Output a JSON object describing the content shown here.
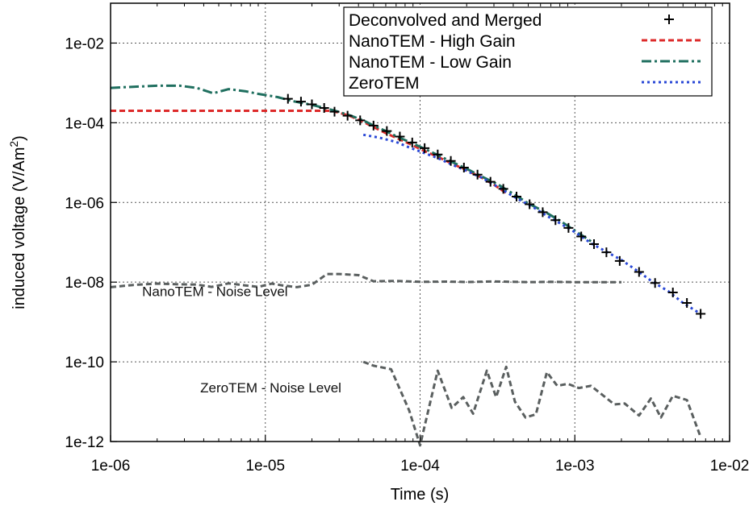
{
  "chart_data": {
    "type": "line",
    "title": "",
    "xlabel": "Time (s)",
    "ylabel": "induced voltage (V/Am",
    "ylabel_sup": "2",
    "ylabel_end": ")",
    "xscale": "log",
    "yscale": "log",
    "xlim": [
      1e-06,
      0.01
    ],
    "ylim": [
      1e-12,
      0.1
    ],
    "grid": true,
    "legend_position": "top-right",
    "x_ticks": [
      {
        "value": 1e-06,
        "label": "1e-06"
      },
      {
        "value": 1e-05,
        "label": "1e-05"
      },
      {
        "value": 0.0001,
        "label": "1e-04"
      },
      {
        "value": 0.001,
        "label": "1e-03"
      },
      {
        "value": 0.01,
        "label": "1e-02"
      }
    ],
    "y_ticks": [
      {
        "value": 1e-12,
        "label": "1e-12"
      },
      {
        "value": 1e-10,
        "label": "1e-10"
      },
      {
        "value": 1e-08,
        "label": "1e-08"
      },
      {
        "value": 1e-06,
        "label": "1e-06"
      },
      {
        "value": 0.0001,
        "label": "1e-04"
      },
      {
        "value": 0.01,
        "label": "1e-02"
      }
    ],
    "series": [
      {
        "name": "NanoTEM - Noise Level",
        "color": "#5a5f5f",
        "style": "dashed",
        "in_legend": false,
        "x": [
          1e-06,
          1.4e-06,
          2e-06,
          2.8e-06,
          3.6e-06,
          4.5e-06,
          5.8e-06,
          7.4e-06,
          9e-06,
          1.1e-05,
          1.3e-05,
          1.6e-05,
          2e-05,
          2.5e-05,
          3e-05,
          4e-05,
          5e-05,
          7e-05,
          0.0001,
          0.00015,
          0.0002,
          0.0003,
          0.0005,
          0.0007,
          0.001,
          0.0015,
          0.002
        ],
        "y": [
          7.5e-09,
          8.5e-09,
          9.2e-09,
          8.8e-09,
          8.7e-09,
          7.6e-09,
          9.3e-09,
          8.3e-09,
          7.6e-09,
          9.2e-09,
          8.2e-09,
          7.5e-09,
          8.6e-09,
          1.6e-08,
          1.6e-08,
          1.5e-08,
          1.05e-08,
          1.07e-08,
          1.02e-08,
          1.03e-08,
          1.01e-08,
          1.04e-08,
          1e-08,
          1.02e-08,
          1e-08,
          1e-08,
          1e-08
        ]
      },
      {
        "name": "ZeroTEM - Noise Level",
        "color": "#5a5f5f",
        "style": "dashed",
        "in_legend": false,
        "x": [
          4.3e-05,
          5e-05,
          6.5e-05,
          8.5e-05,
          0.0001,
          0.00013,
          0.00016,
          0.00019,
          0.00022,
          0.00027,
          0.00031,
          0.00036,
          0.00041,
          0.00048,
          0.00056,
          0.00066,
          0.00077,
          0.0009,
          0.00106,
          0.00127,
          0.0015,
          0.0018,
          0.0021,
          0.0026,
          0.0031,
          0.0036,
          0.0043,
          0.0053,
          0.0065
        ],
        "y": [
          1e-10,
          8e-11,
          6.5e-11,
          6e-12,
          8e-13,
          6e-11,
          7e-12,
          1.3e-11,
          5e-12,
          6e-11,
          1.3e-11,
          7.5e-11,
          1e-11,
          4e-12,
          4.8e-12,
          5.5e-11,
          2.5e-11,
          2.8e-11,
          2.2e-11,
          2.5e-11,
          1.5e-11,
          8.5e-12,
          9e-12,
          4.5e-12,
          1.2e-11,
          4e-12,
          1.4e-11,
          1.1e-11,
          1.3e-12
        ]
      },
      {
        "name": "NanoTEM - High Gain",
        "color": "#dd2a2a",
        "style": "dashed",
        "in_legend": true,
        "x": [
          1e-06,
          2e-06,
          5e-06,
          1e-05,
          2e-05,
          2.7e-05,
          3.5e-05,
          4.2e-05,
          5e-05,
          6e-05,
          7e-05,
          8.5e-05,
          0.0001,
          0.00013,
          0.00016,
          0.0002,
          0.00025,
          0.0003,
          0.00037
        ],
        "y": [
          0.0002,
          0.0002,
          0.0002,
          0.0002,
          0.0002,
          0.0002,
          0.00015,
          0.00011,
          7.8e-05,
          5.5e-05,
          4.2e-05,
          3e-05,
          2.2e-05,
          1.4e-05,
          9.5e-06,
          6.5e-06,
          4.2e-06,
          2.8e-06,
          1.6e-06
        ]
      },
      {
        "name": "NanoTEM - Low Gain",
        "color": "#1f6f5f",
        "style": "dash-dot",
        "in_legend": true,
        "x": [
          1e-06,
          1.4e-06,
          2e-06,
          2.8e-06,
          3.6e-06,
          4.6e-06,
          5.8e-06,
          7.4e-06,
          9e-06,
          1.2e-05,
          1.5e-05,
          2e-05,
          2.7e-05,
          3.5e-05,
          4.3e-05,
          5e-05,
          6e-05,
          7e-05,
          8.5e-05,
          0.0001,
          0.00013,
          0.00016,
          0.0002,
          0.00025,
          0.00032,
          0.0004,
          0.0005,
          0.00065,
          0.0008,
          0.001,
          0.0013
        ],
        "y": [
          0.00075,
          0.0008,
          0.00085,
          0.00085,
          0.00075,
          0.00055,
          0.0007,
          0.00062,
          0.00053,
          0.00044,
          0.00035,
          0.00028,
          0.00021,
          0.000155,
          0.000115,
          8.5e-05,
          6.2e-05,
          4.6e-05,
          3.3e-05,
          2.5e-05,
          1.55e-05,
          1.05e-05,
          7e-06,
          4.5e-06,
          2.8e-06,
          1.65e-06,
          9.5e-07,
          5.6e-07,
          3.5e-07,
          1.95e-07,
          1e-07
        ]
      },
      {
        "name": "ZeroTEM",
        "color": "#2a48d6",
        "style": "dotted",
        "in_legend": true,
        "x": [
          4.3e-05,
          5.5e-05,
          7e-05,
          8.5e-05,
          0.0001,
          0.00013,
          0.00016,
          0.0002,
          0.00025,
          0.0003,
          0.00037,
          0.00045,
          0.00055,
          0.00066,
          0.0008,
          0.001,
          0.0013,
          0.0016,
          0.002,
          0.0026,
          0.0032,
          0.004,
          0.005,
          0.0065
        ],
        "y": [
          5e-05,
          4.2e-05,
          3.3e-05,
          2.4e-05,
          1.9e-05,
          1.3e-05,
          9e-06,
          6.2e-06,
          4.2e-06,
          2.8e-06,
          1.7e-06,
          1.1e-06,
          7.2e-07,
          4.6e-07,
          3e-07,
          1.8e-07,
          9e-08,
          5.8e-08,
          3.6e-08,
          1.8e-08,
          1e-08,
          6e-09,
          3e-09,
          1.6e-09
        ]
      },
      {
        "name": "Deconvolved and Merged",
        "color": "#000000",
        "style": "markers",
        "in_legend": true,
        "x": [
          1.4e-05,
          1.7e-05,
          2e-05,
          2.4e-05,
          2.8e-05,
          3.4e-05,
          4.1e-05,
          5e-05,
          6.1e-05,
          7.4e-05,
          8.9e-05,
          0.000107,
          0.00013,
          0.000158,
          0.000192,
          0.000235,
          0.000285,
          0.000345,
          0.00042,
          0.00051,
          0.00062,
          0.00075,
          0.00091,
          0.0011,
          0.00133,
          0.0016,
          0.00195,
          0.0026,
          0.0033,
          0.0043,
          0.0053,
          0.0065
        ],
        "y": [
          0.0004,
          0.00034,
          0.00029,
          0.000235,
          0.00019,
          0.00015,
          0.000115,
          8.5e-05,
          6.2e-05,
          4.5e-05,
          3.2e-05,
          2.3e-05,
          1.6e-05,
          1.1e-05,
          7.5e-06,
          5e-06,
          3.3e-06,
          2.2e-06,
          1.4e-06,
          9e-07,
          5.7e-07,
          3.6e-07,
          2.3e-07,
          1.4e-07,
          9e-08,
          5.6e-08,
          3.4e-08,
          1.8e-08,
          9.5e-09,
          5.5e-09,
          3e-09,
          1.6e-09
        ]
      }
    ],
    "legend": [
      {
        "label": "Deconvolved and Merged",
        "series": "Deconvolved and Merged"
      },
      {
        "label": "NanoTEM - High Gain",
        "series": "NanoTEM - High Gain"
      },
      {
        "label": "NanoTEM - Low Gain",
        "series": "NanoTEM - Low Gain"
      },
      {
        "label": "ZeroTEM",
        "series": "ZeroTEM"
      }
    ],
    "annotations": [
      {
        "text": "NanoTEM - Noise Level",
        "x": 1.6e-06,
        "y": 4.5e-09
      },
      {
        "text": "ZeroTEM - Noise Level",
        "x": 3.8e-06,
        "y": 1.7e-11
      }
    ]
  }
}
